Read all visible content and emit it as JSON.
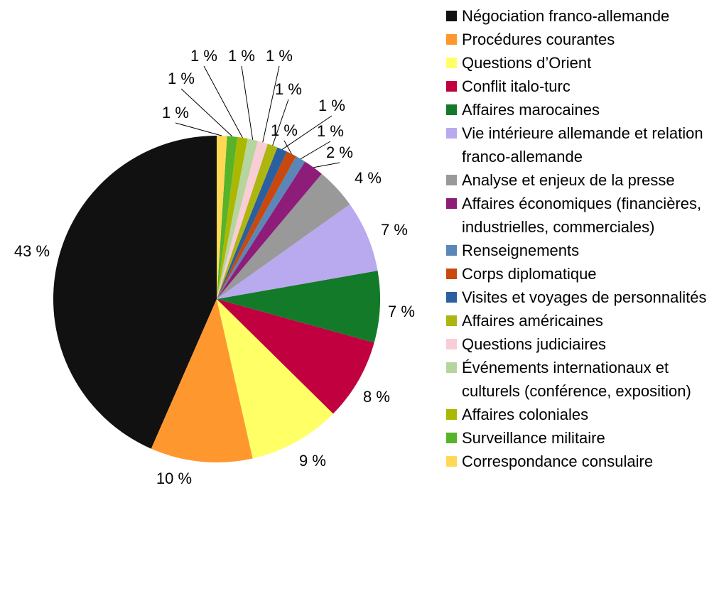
{
  "chart_data": {
    "type": "pie",
    "categories": [
      "Négociation franco-allemande",
      "Procédures courantes",
      "Questions d’Orient",
      "Conflit italo-turc",
      "Affaires marocaines",
      "Vie intérieure allemande et relation franco-allemande",
      "Analyse et enjeux de la presse",
      "Affaires économiques (financières, industrielles, commerciales)",
      "Renseignements",
      "Corps diplomatique",
      "Visites et voyages de personnalités",
      "Affaires américaines",
      "Questions judiciaires",
      "Événements internationaux et culturels (conférence, exposition)",
      "Affaires coloniales",
      "Surveillance militaire",
      "Correspondance consulaire"
    ],
    "values": [
      43,
      10,
      9,
      8,
      7,
      7,
      4,
      2,
      1,
      1,
      1,
      1,
      1,
      1,
      1,
      1,
      1
    ],
    "value_labels": [
      "43 %",
      "10 %",
      "9 %",
      "8 %",
      "7 %",
      "7 %",
      "4 %",
      "2 %",
      "1 %",
      "1 %",
      "1 %",
      "1 %",
      "1 %",
      "1 %",
      "1 %",
      "1 %",
      "1 %"
    ],
    "colors": [
      "#111111",
      "#ff972f",
      "#ffff66",
      "#c0003f",
      "#137a2a",
      "#b9a9ef",
      "#999999",
      "#8e1d7a",
      "#5a87b8",
      "#c8480e",
      "#2a5fa0",
      "#adb50f",
      "#f8cdd6",
      "#b6d59e",
      "#aab800",
      "#56b32a",
      "#ffd955"
    ],
    "direction": "counterclockwise",
    "legend": "right"
  }
}
